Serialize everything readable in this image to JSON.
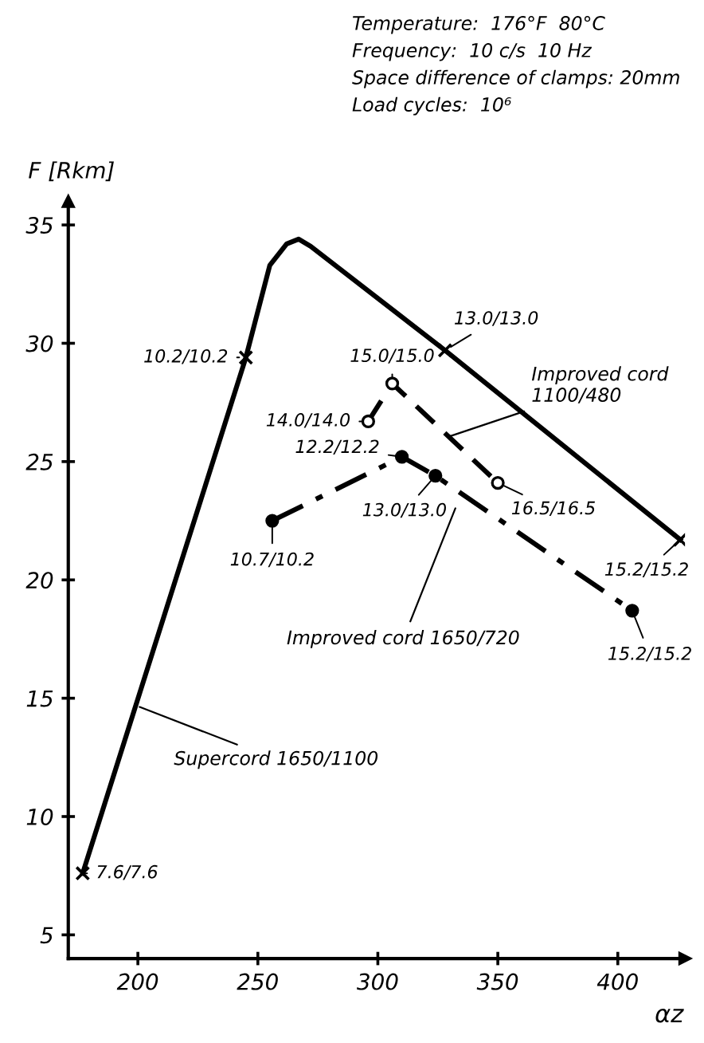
{
  "chart_data": {
    "type": "line",
    "xlabel": "αz",
    "ylabel": "F [Rkm]",
    "xlim": [
      171,
      428
    ],
    "ylim": [
      4,
      36
    ],
    "xticks": [
      200,
      250,
      300,
      350,
      400
    ],
    "yticks": [
      5,
      10,
      15,
      20,
      25,
      30,
      35
    ],
    "grid": false,
    "series": [
      {
        "name": "Supercord 1650/1100",
        "color": "#000000",
        "line_style": "solid",
        "marker": "none",
        "x": [
          177,
          245,
          255,
          262,
          267,
          272,
          328,
          426
        ],
        "values": [
          7.6,
          29.4,
          33.3,
          34.2,
          34.4,
          34.1,
          29.7,
          21.7
        ]
      },
      {
        "type": "scatter",
        "color": "#000000",
        "marker": "cross",
        "x": [
          177,
          245,
          328,
          426
        ],
        "values": [
          7.6,
          29.4,
          29.7,
          21.7
        ]
      },
      {
        "name": "Improved cord 1100/480",
        "color": "#000000",
        "line_style": "dashed",
        "marker": "circle",
        "x": [
          296,
          306,
          350
        ],
        "values": [
          26.7,
          28.3,
          24.1
        ]
      },
      {
        "name": "Improved cord 1650/720",
        "color": "#000000",
        "line_style": "dashdot",
        "marker": "circle",
        "x": [
          256,
          310,
          324,
          406
        ],
        "values": [
          22.5,
          25.2,
          24.4,
          18.7
        ]
      }
    ],
    "annotations": [
      "Temperature:  176°F  80°C",
      "Frequency:  10 c/s  10 Hz",
      "Space difference of clamps: 20mm",
      "Load cycles:  10⁶",
      {
        "text": "7.6/7.6",
        "x": 177,
        "y": 7.6
      },
      {
        "text": "10.2/10.2",
        "x": 245,
        "y": 29.4
      },
      {
        "text": "13.0/13.0",
        "x": 328,
        "y": 29.7
      },
      {
        "text": "15.2/15.2",
        "x": 426,
        "y": 21.7
      },
      {
        "text": "14.0/14.0",
        "x": 296,
        "y": 26.7
      },
      {
        "text": "15.0/15.0",
        "x": 306,
        "y": 28.3
      },
      {
        "text": "16.5/16.5",
        "x": 350,
        "y": 24.1
      },
      {
        "text": "10.7/10.2",
        "x": 256,
        "y": 22.5
      },
      {
        "text": "12.2/12.2",
        "x": 310,
        "y": 25.2
      },
      {
        "text": "13.0/13.0",
        "x": 324,
        "y": 24.4
      },
      {
        "text": "15.2/15.2",
        "x": 406,
        "y": 18.7
      }
    ]
  }
}
